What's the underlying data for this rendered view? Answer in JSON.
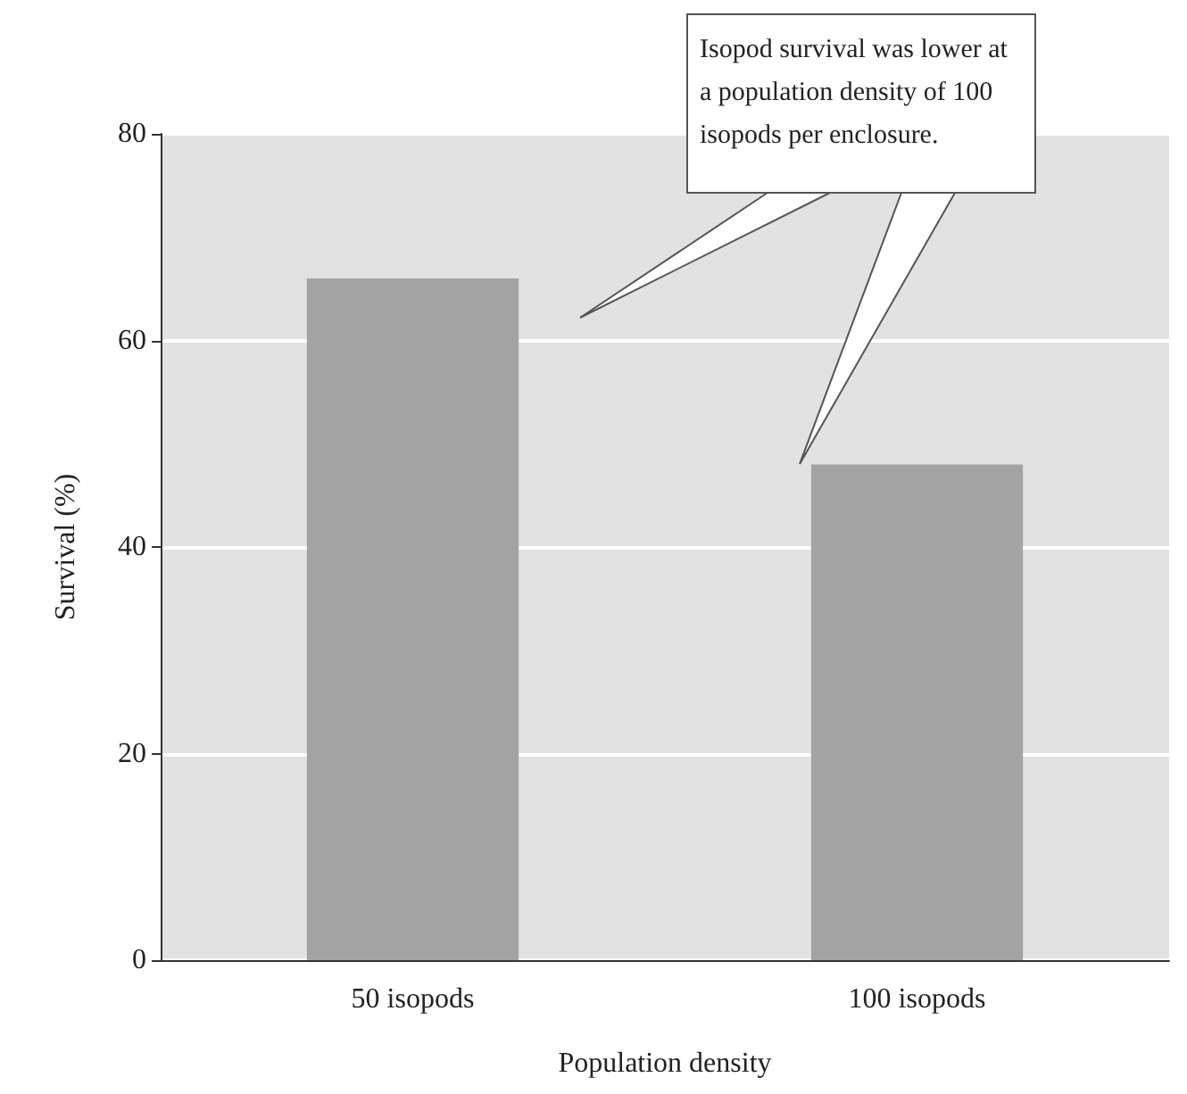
{
  "chart_data": {
    "type": "bar",
    "categories": [
      "50 isopods",
      "100 isopods"
    ],
    "values": [
      66,
      48
    ],
    "color": "#a3a3a3",
    "xlabel": "Population density",
    "ylabel": "Survival (%)",
    "ylim": [
      0,
      80
    ],
    "yticks": [
      0,
      20,
      40,
      60,
      80
    ],
    "grid": "y",
    "annotations": [
      "Isopod survival was lower at a population density of 100 isopods per enclosure."
    ]
  }
}
